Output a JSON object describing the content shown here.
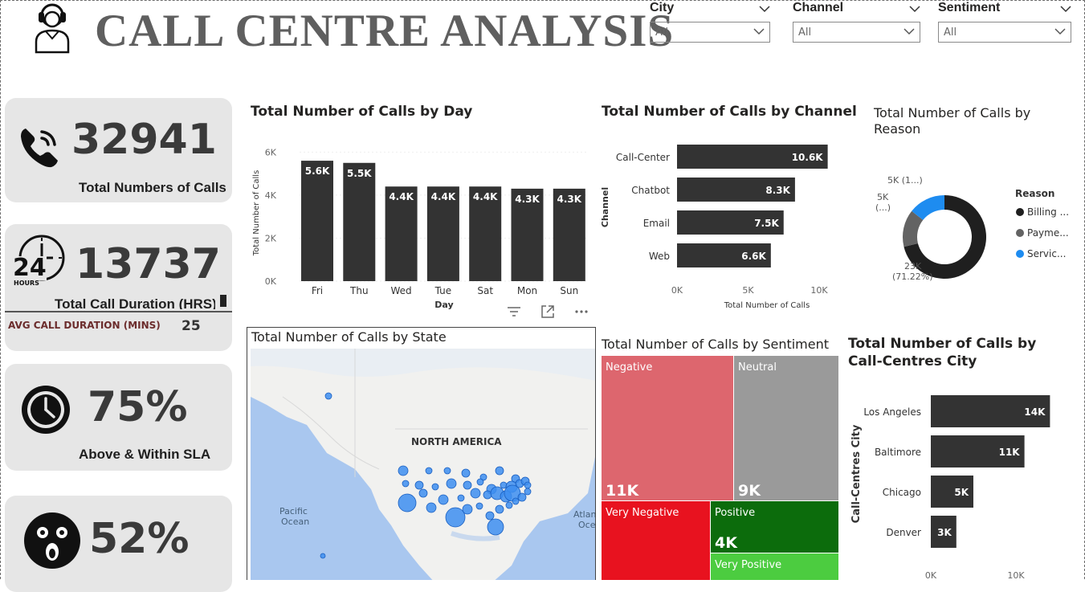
{
  "header": {
    "title": "CALL CENTRE ANALYSIS"
  },
  "slicers": [
    {
      "label": "City",
      "value": "All"
    },
    {
      "label": "Channel",
      "value": "All"
    },
    {
      "label": "Sentiment",
      "value": "All"
    }
  ],
  "kpis": {
    "total_calls": {
      "value": "32941",
      "label": "Total Numbers of Calls"
    },
    "duration": {
      "value": "13737",
      "label": "Total Call Duration (HRS)",
      "hours_badge": "24",
      "hours_text": "HOURS",
      "avg_label": "AVG CALL DURATION (MINS)",
      "avg_value": "25"
    },
    "sla": {
      "value": "75%",
      "label": "Above & Within SLA"
    },
    "sentiment_pct": {
      "value": "52%"
    }
  },
  "visual_toolbar": [
    "filter-icon",
    "focus-mode-icon",
    "more-options-icon"
  ],
  "map": {
    "title": "Total Number of Calls by State",
    "labels": {
      "continent": "NORTH AMERICA",
      "pacific": "Pacific\nOcean",
      "atlantic": "Atlan\nOce"
    }
  },
  "chart_data": [
    {
      "id": "by_day",
      "type": "bar",
      "title": "Total Number of Calls by Day",
      "xlabel": "Day",
      "ylabel": "Total Number of Calls",
      "categories": [
        "Fri",
        "Thu",
        "Wed",
        "Tue",
        "Sat",
        "Mon",
        "Sun"
      ],
      "values": [
        5600,
        5500,
        4400,
        4400,
        4400,
        4300,
        4300
      ],
      "data_labels": [
        "5.6K",
        "5.5K",
        "4.4K",
        "4.4K",
        "4.4K",
        "4.3K",
        "4.3K"
      ],
      "yticks": [
        "0K",
        "2K",
        "4K",
        "6K"
      ],
      "ylim": [
        0,
        6500
      ],
      "color": "#333333"
    },
    {
      "id": "by_channel",
      "type": "bar",
      "orientation": "horizontal",
      "title": "Total Number of Calls by Channel",
      "xlabel": "Total Number of Calls",
      "ylabel": "Channel",
      "categories": [
        "Call-Center",
        "Chatbot",
        "Email",
        "Web"
      ],
      "values": [
        10600,
        8300,
        7500,
        6600
      ],
      "data_labels": [
        "10.6K",
        "8.3K",
        "7.5K",
        "6.6K"
      ],
      "xticks": [
        "0K",
        "5K",
        "10K"
      ],
      "xlim": [
        0,
        10000
      ],
      "color": "#333333"
    },
    {
      "id": "by_reason",
      "type": "pie",
      "donut": true,
      "title": "Total Number of Calls by Reason",
      "legend_title": "Reason",
      "legend_position": "right",
      "categories": [
        "Billing ...",
        "Payme...",
        "Servic..."
      ],
      "values": [
        23462,
        4750,
        4729
      ],
      "colors": [
        "#1f1f1f",
        "#636363",
        "#1e8cf0"
      ],
      "data_labels": [
        "23K\n(71.22%)",
        "5K\n(...)",
        "5K (1...)"
      ]
    },
    {
      "id": "by_sentiment",
      "type": "treemap",
      "title": "Total Number of Calls by Sentiment",
      "categories": [
        "Negative",
        "Neutral",
        "Very Negative",
        "Positive",
        "Very Positive"
      ],
      "values": [
        11000,
        9000,
        6000,
        4000,
        2000
      ],
      "data_labels": [
        "11K",
        "9K",
        "",
        "4K",
        ""
      ],
      "colors": [
        "#dd666e",
        "#9a9a9a",
        "#e8121f",
        "#0c6c0c",
        "#4ccc40"
      ]
    },
    {
      "id": "by_city",
      "type": "bar",
      "orientation": "horizontal",
      "title": "Total Number of Calls by Call-Centres City",
      "ylabel": "Call-Centres City",
      "categories": [
        "Los Angeles",
        "Baltimore",
        "Chicago",
        "Denver"
      ],
      "values": [
        14000,
        11000,
        5000,
        3000
      ],
      "data_labels": [
        "14K",
        "11K",
        "5K",
        "3K"
      ],
      "xticks": [
        "0K",
        "10K"
      ],
      "xlim": [
        0,
        10000
      ],
      "color": "#333333"
    }
  ]
}
